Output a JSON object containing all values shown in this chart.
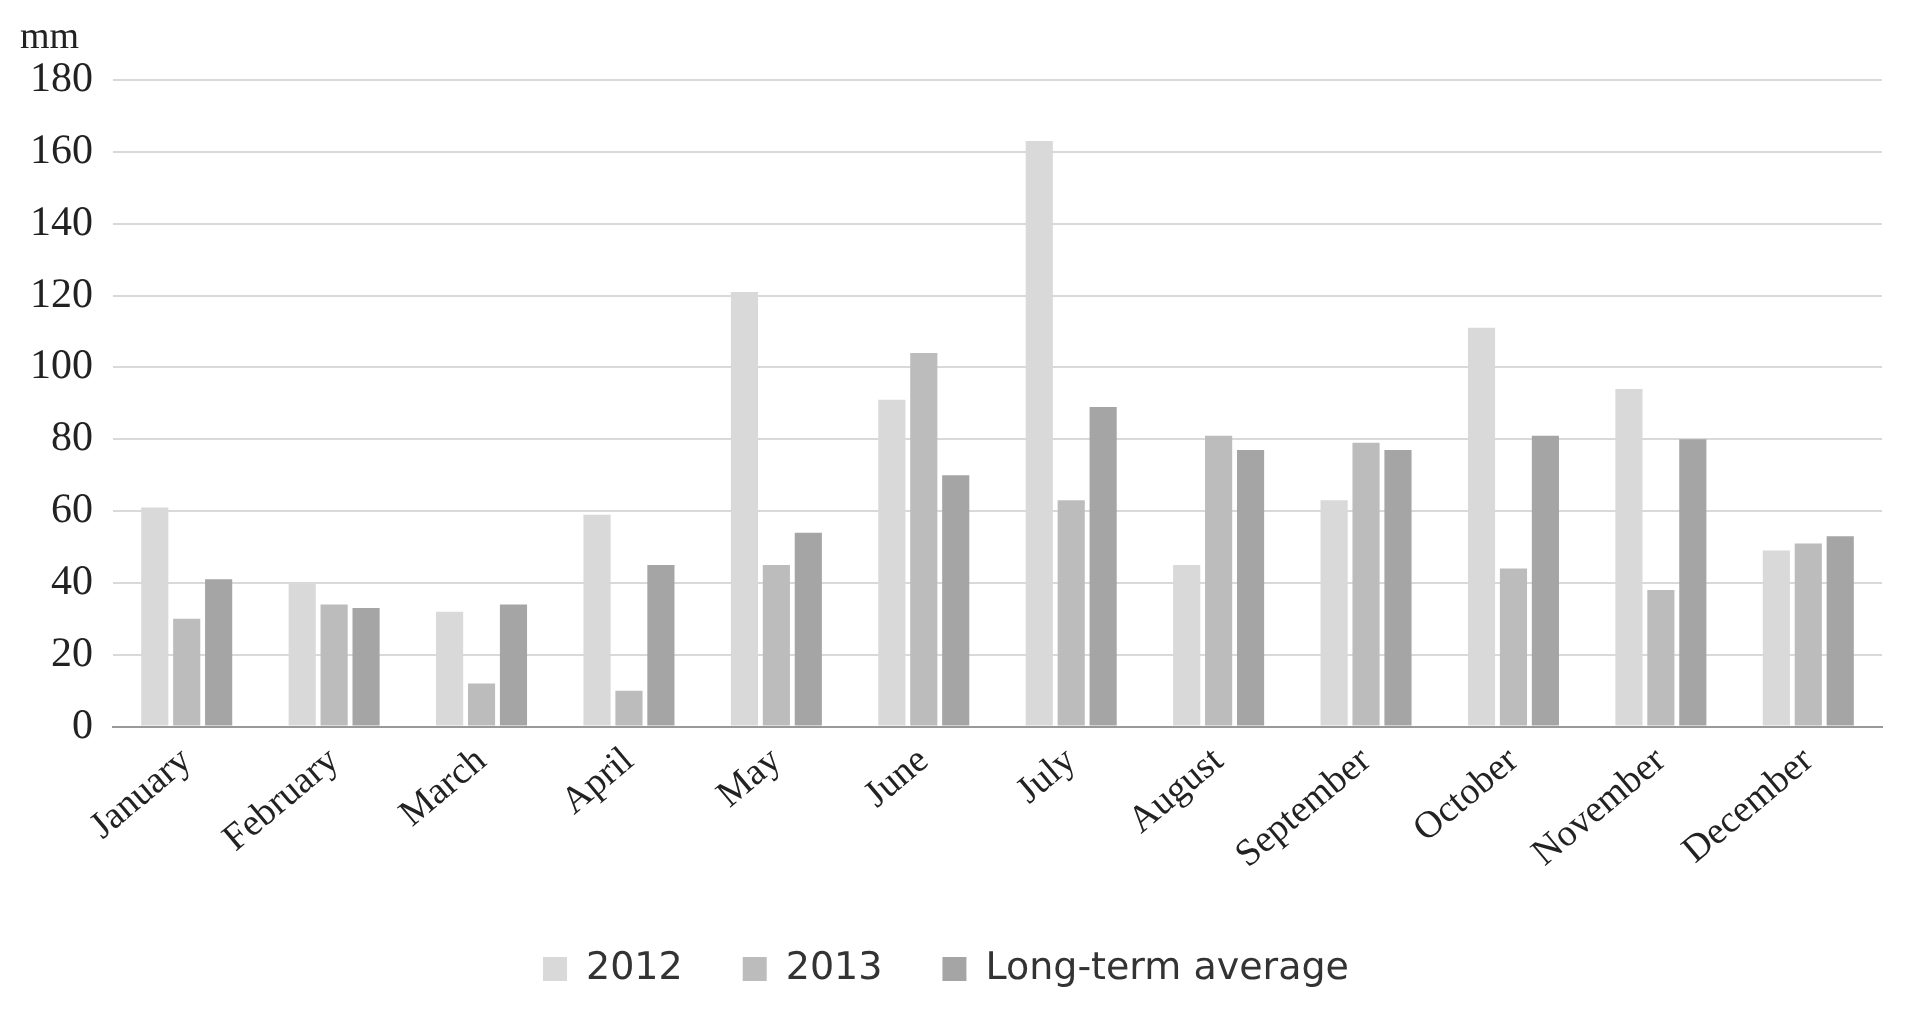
{
  "chart_data": {
    "type": "bar",
    "ylabel": "mm",
    "categories": [
      "January",
      "February",
      "March",
      "April",
      "May",
      "June",
      "July",
      "August",
      "September",
      "October",
      "November",
      "December"
    ],
    "series": [
      {
        "name": "2012",
        "color": "#d9d9d9",
        "values": [
          61,
          40,
          32,
          59,
          121,
          91,
          163,
          45,
          63,
          111,
          94,
          49
        ]
      },
      {
        "name": "2013",
        "color": "#bcbcbc",
        "values": [
          30,
          34,
          12,
          10,
          45,
          104,
          63,
          81,
          79,
          44,
          38,
          51
        ]
      },
      {
        "name": "Long-term average",
        "color": "#a5a5a5",
        "values": [
          41,
          33,
          34,
          45,
          54,
          70,
          89,
          77,
          77,
          81,
          80,
          53
        ]
      }
    ],
    "ylim": [
      0,
      180
    ],
    "yticks": [
      0,
      20,
      40,
      60,
      80,
      100,
      120,
      140,
      160,
      180
    ],
    "grid": "y",
    "legend": "bottom"
  }
}
